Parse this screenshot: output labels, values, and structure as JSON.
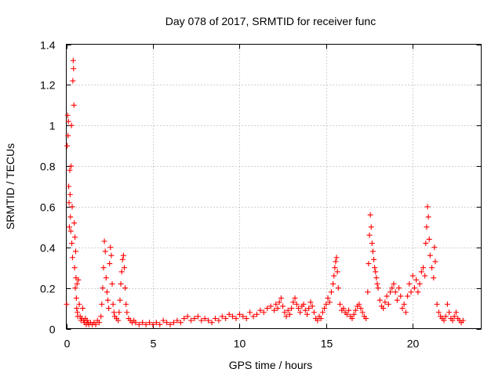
{
  "chart_data": {
    "type": "scatter",
    "title": "Day 078 of 2017, SRMTID for receiver func",
    "xlabel": "GPS time / hours",
    "ylabel": "SRMTID / TECUs",
    "xlim": [
      0,
      23.95
    ],
    "ylim": [
      0,
      1.4
    ],
    "xticks": [
      0,
      5,
      10,
      15,
      20
    ],
    "xtick_labels": [
      "0",
      "5",
      "10",
      "15",
      "20"
    ],
    "yticks": [
      0,
      0.2,
      0.4,
      0.6,
      0.8,
      1,
      1.2,
      1.4
    ],
    "ytick_labels": [
      "0",
      "0.2",
      "0.4",
      "0.6",
      "0.8",
      "1",
      "1.2",
      "1.4"
    ],
    "grid": true,
    "marker": "+",
    "color": "#ff0000",
    "series": [
      {
        "name": "SRMTID",
        "points": [
          [
            0.02,
            0.12
          ],
          [
            0.05,
            0.9
          ],
          [
            0.08,
            1.05
          ],
          [
            0.1,
            0.95
          ],
          [
            0.12,
            1.02
          ],
          [
            0.14,
            0.7
          ],
          [
            0.16,
            0.62
          ],
          [
            0.18,
            0.5
          ],
          [
            0.2,
            0.78
          ],
          [
            0.22,
            0.66
          ],
          [
            0.24,
            0.55
          ],
          [
            0.26,
            0.48
          ],
          [
            0.28,
            0.8
          ],
          [
            0.3,
            1.0
          ],
          [
            0.32,
            0.42
          ],
          [
            0.34,
            0.6
          ],
          [
            0.36,
            0.35
          ],
          [
            0.38,
            1.22
          ],
          [
            0.4,
            1.32
          ],
          [
            0.42,
            1.28
          ],
          [
            0.44,
            1.1
          ],
          [
            0.46,
            0.52
          ],
          [
            0.48,
            0.3
          ],
          [
            0.5,
            0.45
          ],
          [
            0.52,
            0.2
          ],
          [
            0.54,
            0.38
          ],
          [
            0.56,
            0.25
          ],
          [
            0.58,
            0.15
          ],
          [
            0.6,
            0.1
          ],
          [
            0.62,
            0.22
          ],
          [
            0.64,
            0.08
          ],
          [
            0.66,
            0.06
          ],
          [
            0.7,
            0.24
          ],
          [
            0.75,
            0.12
          ],
          [
            0.8,
            0.06
          ],
          [
            0.85,
            0.04
          ],
          [
            0.9,
            0.05
          ],
          [
            0.95,
            0.1
          ],
          [
            1.0,
            0.04
          ],
          [
            1.05,
            0.03
          ],
          [
            1.1,
            0.05
          ],
          [
            1.15,
            0.02
          ],
          [
            1.2,
            0.04
          ],
          [
            1.25,
            0.03
          ],
          [
            1.3,
            0.02
          ],
          [
            1.4,
            0.03
          ],
          [
            1.5,
            0.02
          ],
          [
            1.6,
            0.03
          ],
          [
            1.7,
            0.02
          ],
          [
            1.8,
            0.04
          ],
          [
            1.9,
            0.03
          ],
          [
            2.0,
            0.06
          ],
          [
            2.05,
            0.12
          ],
          [
            2.1,
            0.2
          ],
          [
            2.15,
            0.3
          ],
          [
            2.2,
            0.43
          ],
          [
            2.25,
            0.38
          ],
          [
            2.3,
            0.25
          ],
          [
            2.35,
            0.18
          ],
          [
            2.4,
            0.14
          ],
          [
            2.45,
            0.1
          ],
          [
            2.5,
            0.32
          ],
          [
            2.55,
            0.4
          ],
          [
            2.6,
            0.36
          ],
          [
            2.65,
            0.22
          ],
          [
            2.7,
            0.12
          ],
          [
            2.75,
            0.08
          ],
          [
            2.8,
            0.06
          ],
          [
            2.9,
            0.05
          ],
          [
            3.0,
            0.04
          ],
          [
            3.05,
            0.08
          ],
          [
            3.1,
            0.14
          ],
          [
            3.15,
            0.22
          ],
          [
            3.2,
            0.28
          ],
          [
            3.25,
            0.34
          ],
          [
            3.3,
            0.36
          ],
          [
            3.35,
            0.3
          ],
          [
            3.4,
            0.2
          ],
          [
            3.45,
            0.12
          ],
          [
            3.5,
            0.08
          ],
          [
            3.6,
            0.05
          ],
          [
            3.7,
            0.04
          ],
          [
            3.8,
            0.03
          ],
          [
            3.9,
            0.04
          ],
          [
            4.0,
            0.03
          ],
          [
            4.2,
            0.02
          ],
          [
            4.4,
            0.03
          ],
          [
            4.6,
            0.02
          ],
          [
            4.8,
            0.03
          ],
          [
            5.0,
            0.02
          ],
          [
            5.2,
            0.03
          ],
          [
            5.4,
            0.02
          ],
          [
            5.6,
            0.04
          ],
          [
            5.8,
            0.03
          ],
          [
            6.0,
            0.02
          ],
          [
            6.2,
            0.03
          ],
          [
            6.4,
            0.04
          ],
          [
            6.6,
            0.03
          ],
          [
            6.8,
            0.05
          ],
          [
            7.0,
            0.06
          ],
          [
            7.2,
            0.04
          ],
          [
            7.4,
            0.05
          ],
          [
            7.6,
            0.06
          ],
          [
            7.8,
            0.04
          ],
          [
            8.0,
            0.05
          ],
          [
            8.2,
            0.04
          ],
          [
            8.4,
            0.03
          ],
          [
            8.6,
            0.05
          ],
          [
            8.8,
            0.04
          ],
          [
            9.0,
            0.06
          ],
          [
            9.2,
            0.05
          ],
          [
            9.4,
            0.07
          ],
          [
            9.6,
            0.06
          ],
          [
            9.8,
            0.05
          ],
          [
            10.0,
            0.07
          ],
          [
            10.2,
            0.06
          ],
          [
            10.4,
            0.05
          ],
          [
            10.6,
            0.08
          ],
          [
            10.8,
            0.06
          ],
          [
            11.0,
            0.07
          ],
          [
            11.2,
            0.09
          ],
          [
            11.4,
            0.08
          ],
          [
            11.6,
            0.1
          ],
          [
            11.8,
            0.11
          ],
          [
            12.0,
            0.09
          ],
          [
            12.1,
            0.12
          ],
          [
            12.2,
            0.1
          ],
          [
            12.3,
            0.13
          ],
          [
            12.4,
            0.15
          ],
          [
            12.5,
            0.11
          ],
          [
            12.6,
            0.08
          ],
          [
            12.7,
            0.06
          ],
          [
            12.8,
            0.09
          ],
          [
            12.9,
            0.07
          ],
          [
            13.0,
            0.1
          ],
          [
            13.1,
            0.13
          ],
          [
            13.2,
            0.15
          ],
          [
            13.3,
            0.12
          ],
          [
            13.4,
            0.1
          ],
          [
            13.5,
            0.08
          ],
          [
            13.6,
            0.11
          ],
          [
            13.7,
            0.12
          ],
          [
            13.8,
            0.09
          ],
          [
            13.9,
            0.07
          ],
          [
            14.0,
            0.1
          ],
          [
            14.1,
            0.13
          ],
          [
            14.2,
            0.11
          ],
          [
            14.3,
            0.08
          ],
          [
            14.4,
            0.05
          ],
          [
            14.5,
            0.04
          ],
          [
            14.6,
            0.06
          ],
          [
            14.7,
            0.05
          ],
          [
            14.8,
            0.08
          ],
          [
            14.9,
            0.1
          ],
          [
            15.0,
            0.12
          ],
          [
            15.1,
            0.15
          ],
          [
            15.2,
            0.13
          ],
          [
            15.3,
            0.18
          ],
          [
            15.4,
            0.22
          ],
          [
            15.45,
            0.26
          ],
          [
            15.5,
            0.3
          ],
          [
            15.55,
            0.33
          ],
          [
            15.6,
            0.35
          ],
          [
            15.65,
            0.28
          ],
          [
            15.7,
            0.2
          ],
          [
            15.8,
            0.12
          ],
          [
            15.9,
            0.09
          ],
          [
            16.0,
            0.1
          ],
          [
            16.1,
            0.08
          ],
          [
            16.2,
            0.07
          ],
          [
            16.3,
            0.09
          ],
          [
            16.4,
            0.06
          ],
          [
            16.5,
            0.05
          ],
          [
            16.6,
            0.07
          ],
          [
            16.7,
            0.09
          ],
          [
            16.8,
            0.11
          ],
          [
            16.9,
            0.12
          ],
          [
            17.0,
            0.1
          ],
          [
            17.1,
            0.08
          ],
          [
            17.2,
            0.06
          ],
          [
            17.3,
            0.05
          ],
          [
            17.4,
            0.18
          ],
          [
            17.45,
            0.32
          ],
          [
            17.5,
            0.46
          ],
          [
            17.55,
            0.56
          ],
          [
            17.6,
            0.5
          ],
          [
            17.65,
            0.42
          ],
          [
            17.7,
            0.38
          ],
          [
            17.75,
            0.34
          ],
          [
            17.8,
            0.3
          ],
          [
            17.85,
            0.28
          ],
          [
            17.9,
            0.25
          ],
          [
            17.95,
            0.22
          ],
          [
            18.0,
            0.2
          ],
          [
            18.1,
            0.14
          ],
          [
            18.2,
            0.11
          ],
          [
            18.3,
            0.1
          ],
          [
            18.4,
            0.13
          ],
          [
            18.5,
            0.16
          ],
          [
            18.6,
            0.12
          ],
          [
            18.7,
            0.18
          ],
          [
            18.8,
            0.2
          ],
          [
            18.9,
            0.22
          ],
          [
            19.0,
            0.18
          ],
          [
            19.1,
            0.14
          ],
          [
            19.2,
            0.2
          ],
          [
            19.3,
            0.16
          ],
          [
            19.4,
            0.1
          ],
          [
            19.5,
            0.12
          ],
          [
            19.6,
            0.08
          ],
          [
            19.7,
            0.16
          ],
          [
            19.8,
            0.22
          ],
          [
            19.9,
            0.18
          ],
          [
            20.0,
            0.26
          ],
          [
            20.1,
            0.2
          ],
          [
            20.2,
            0.24
          ],
          [
            20.3,
            0.18
          ],
          [
            20.4,
            0.22
          ],
          [
            20.5,
            0.28
          ],
          [
            20.6,
            0.3
          ],
          [
            20.7,
            0.26
          ],
          [
            20.75,
            0.42
          ],
          [
            20.8,
            0.5
          ],
          [
            20.85,
            0.6
          ],
          [
            20.9,
            0.55
          ],
          [
            20.95,
            0.44
          ],
          [
            21.0,
            0.36
          ],
          [
            21.1,
            0.3
          ],
          [
            21.2,
            0.25
          ],
          [
            21.25,
            0.4
          ],
          [
            21.3,
            0.33
          ],
          [
            21.4,
            0.12
          ],
          [
            21.5,
            0.08
          ],
          [
            21.6,
            0.06
          ],
          [
            21.7,
            0.05
          ],
          [
            21.8,
            0.04
          ],
          [
            21.9,
            0.06
          ],
          [
            22.0,
            0.12
          ],
          [
            22.1,
            0.08
          ],
          [
            22.2,
            0.05
          ],
          [
            22.3,
            0.04
          ],
          [
            22.4,
            0.06
          ],
          [
            22.5,
            0.08
          ],
          [
            22.6,
            0.05
          ],
          [
            22.7,
            0.04
          ],
          [
            22.8,
            0.03
          ],
          [
            22.9,
            0.04
          ]
        ]
      }
    ]
  }
}
